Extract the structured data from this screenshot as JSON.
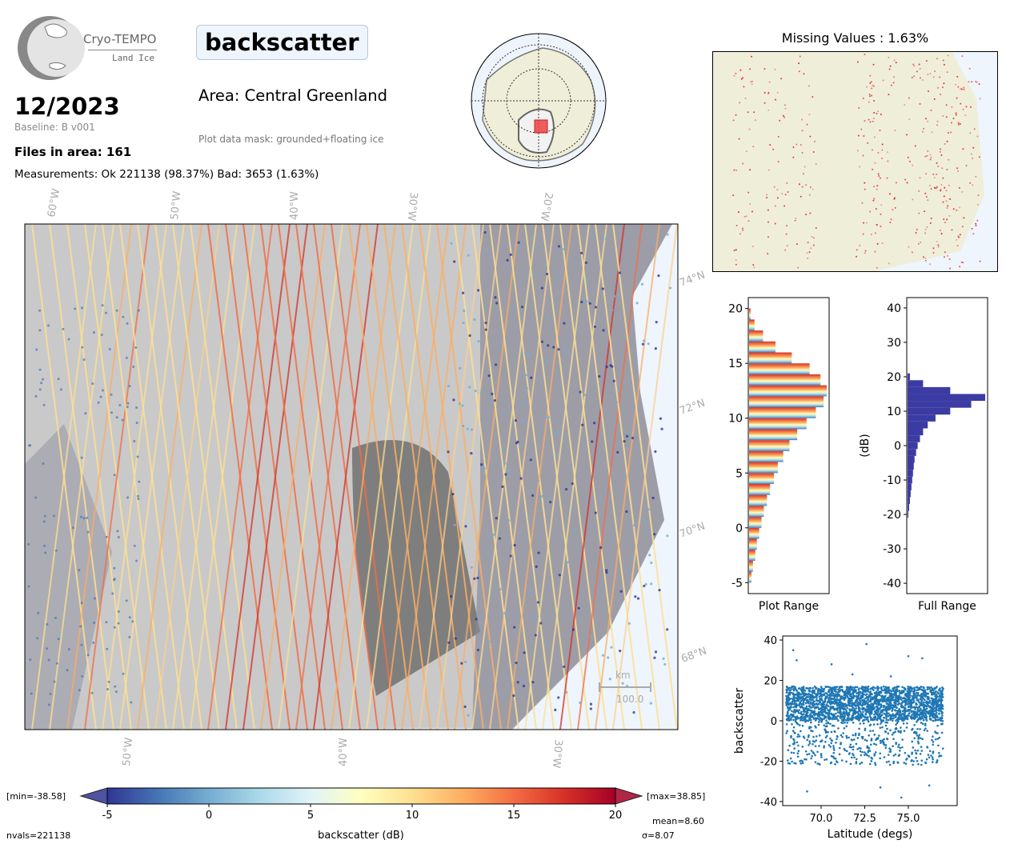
{
  "header": {
    "logo_name": "Cryo-TEMPO",
    "logo_sub": "Land Ice",
    "parameter": "backscatter",
    "month": "12/2023",
    "baseline": "Baseline: B v001",
    "files_in_area": "Files in area: 161",
    "measurements": "Measurements: Ok 221138 (98.37%) Bad: 3653 (1.63%)",
    "area": "Area: Central Greenland",
    "mask": "Plot data mask: grounded+floating ice"
  },
  "map": {
    "lon_labels_top": [
      "60°W",
      "50°W",
      "40°W",
      "30°W",
      "20°W"
    ],
    "lon_labels_bottom": [
      "50°W",
      "40°W",
      "30°W"
    ],
    "lat_labels": [
      "74°N",
      "72°N",
      "70°N",
      "68°N"
    ],
    "scale_unit": "km",
    "scale_value": "100.0"
  },
  "missing": {
    "title": "Missing Values : 1.63%"
  },
  "colorbar": {
    "min_label": "[min=-38.58]",
    "max_label": "[max=38.85]",
    "ticks": [
      "-5",
      "0",
      "5",
      "10",
      "15",
      "20"
    ],
    "label": "backscatter (dB)",
    "nvals": "nvals=221138",
    "mean": "mean=8.60",
    "sigma": "σ=8.07",
    "colors": [
      "#313695",
      "#4575b4",
      "#74add1",
      "#abd9e9",
      "#e0f3f8",
      "#ffffbf",
      "#fee090",
      "#fdae61",
      "#f46d43",
      "#d73027",
      "#a50026"
    ]
  },
  "chart_data": [
    {
      "type": "bar",
      "name": "plot-range-histogram",
      "xlabel": "Plot Range",
      "ylim": [
        -6,
        21
      ],
      "yticks": [
        "-5",
        "0",
        "5",
        "10",
        "15",
        "20"
      ],
      "orientation": "horizontal",
      "bins": [
        [
          -5,
          0.03
        ],
        [
          -4,
          0.05
        ],
        [
          -3,
          0.08
        ],
        [
          -2,
          0.1
        ],
        [
          -1,
          0.13
        ],
        [
          0,
          0.16
        ],
        [
          1,
          0.19
        ],
        [
          2,
          0.23
        ],
        [
          3,
          0.27
        ],
        [
          4,
          0.32
        ],
        [
          5,
          0.37
        ],
        [
          6,
          0.44
        ],
        [
          7,
          0.52
        ],
        [
          8,
          0.62
        ],
        [
          9,
          0.74
        ],
        [
          10,
          0.86
        ],
        [
          11,
          0.96
        ],
        [
          12,
          1.0
        ],
        [
          13,
          0.92
        ],
        [
          14,
          0.78
        ],
        [
          15,
          0.55
        ],
        [
          16,
          0.34
        ],
        [
          17,
          0.18
        ],
        [
          18,
          0.07
        ],
        [
          19,
          0.02
        ]
      ]
    },
    {
      "type": "bar",
      "name": "full-range-histogram",
      "xlabel": "Full Range",
      "ylabel": "(dB)",
      "ylim": [
        -43,
        43
      ],
      "yticks": [
        "-40",
        "-30",
        "-20",
        "-10",
        "0",
        "10",
        "20",
        "30",
        "40"
      ],
      "orientation": "horizontal",
      "bins": [
        [
          -21,
          0.01
        ],
        [
          -19,
          0.02
        ],
        [
          -17,
          0.03
        ],
        [
          -15,
          0.04
        ],
        [
          -13,
          0.05
        ],
        [
          -11,
          0.06
        ],
        [
          -9,
          0.07
        ],
        [
          -7,
          0.08
        ],
        [
          -5,
          0.09
        ],
        [
          -3,
          0.11
        ],
        [
          -1,
          0.13
        ],
        [
          1,
          0.16
        ],
        [
          3,
          0.2
        ],
        [
          5,
          0.26
        ],
        [
          7,
          0.36
        ],
        [
          9,
          0.55
        ],
        [
          11,
          0.82
        ],
        [
          13,
          1.0
        ],
        [
          15,
          0.55
        ],
        [
          17,
          0.2
        ],
        [
          19,
          0.03
        ]
      ]
    },
    {
      "type": "scatter",
      "name": "latitude-scatter",
      "xlabel": "Latitude (degs)",
      "ylabel": "backscatter",
      "xlim": [
        67.8,
        77.8
      ],
      "ylim": [
        -42,
        42
      ],
      "xticks": [
        "70.0",
        "72.5",
        "75.0"
      ],
      "yticks": [
        "-40",
        "-20",
        "0",
        "20",
        "40"
      ],
      "color": "#1f77b4",
      "x_range": [
        68.0,
        77.0
      ],
      "y_core": [
        -22,
        17
      ],
      "outliers": [
        [
          68.4,
          35
        ],
        [
          68.6,
          30
        ],
        [
          70.6,
          28
        ],
        [
          71.8,
          23
        ],
        [
          72.6,
          38
        ],
        [
          74.0,
          22
        ],
        [
          75.0,
          32
        ],
        [
          75.8,
          31
        ],
        [
          69.2,
          -35
        ],
        [
          73.4,
          -33
        ],
        [
          74.6,
          -38
        ],
        [
          76.2,
          -32
        ]
      ]
    }
  ]
}
